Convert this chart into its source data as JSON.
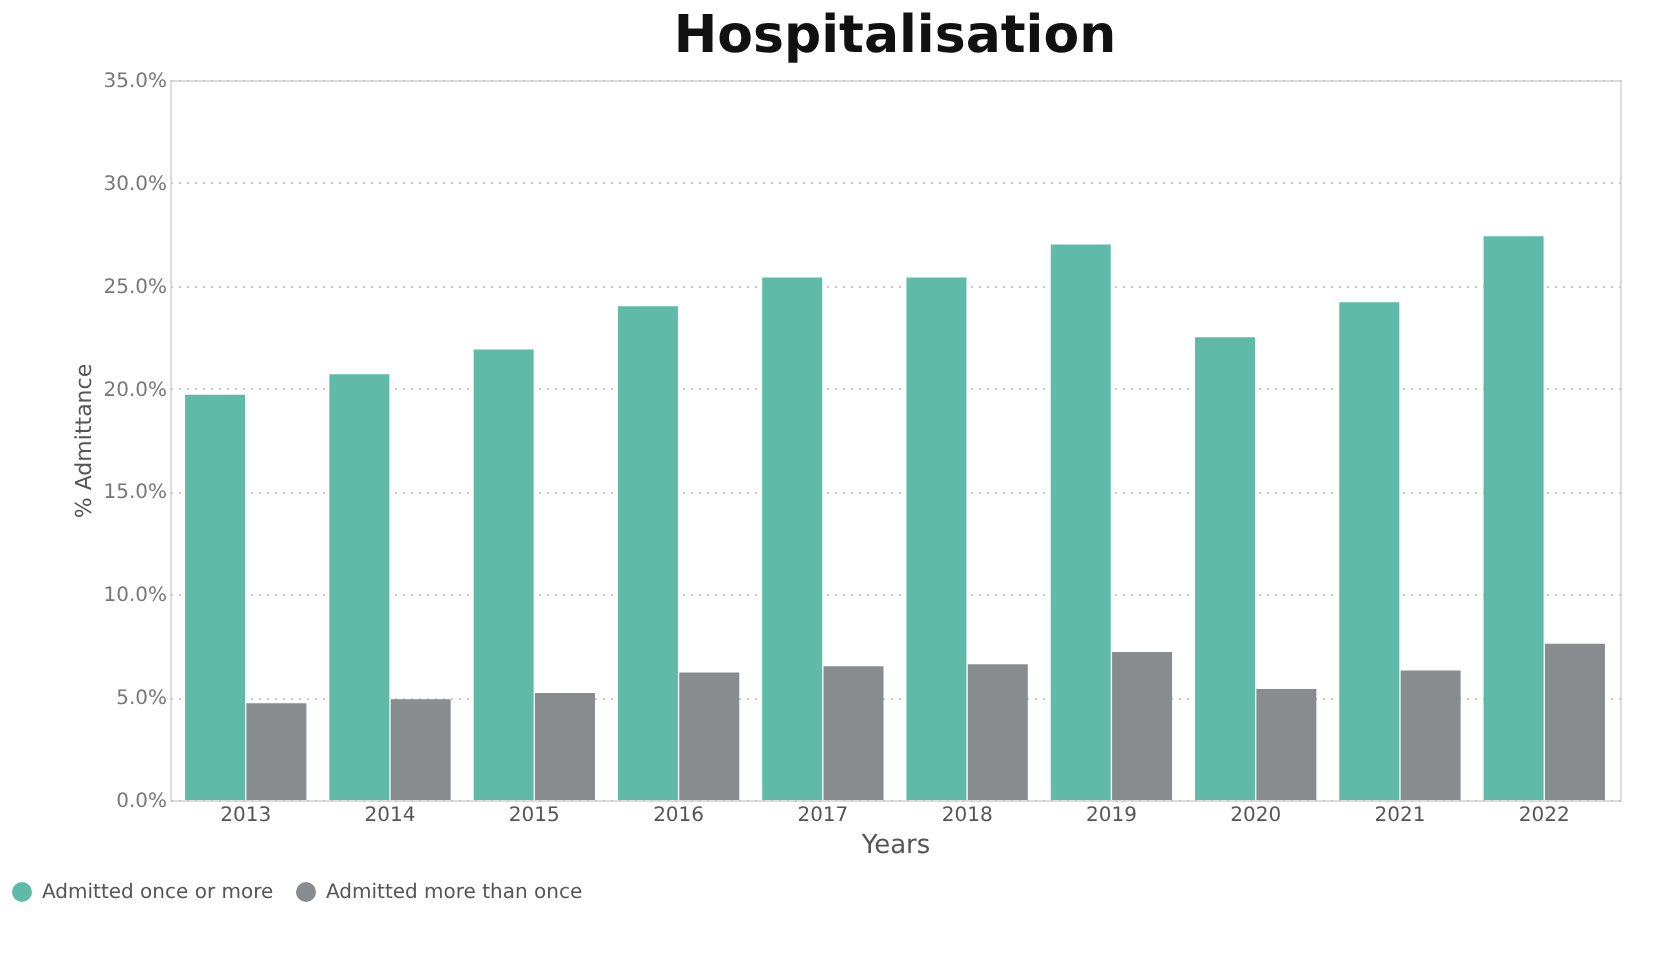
{
  "chart_data": {
    "type": "bar",
    "title": "Hospitalisation",
    "xlabel": "Years",
    "ylabel": "% Admittance",
    "categories": [
      "2013",
      "2014",
      "2015",
      "2016",
      "2017",
      "2018",
      "2019",
      "2020",
      "2021",
      "2022"
    ],
    "series": [
      {
        "name": "Admitted once or more",
        "color": "#5fbaa7",
        "values": [
          19.7,
          20.7,
          21.9,
          24.0,
          25.4,
          25.4,
          27.0,
          22.5,
          24.2,
          27.4
        ]
      },
      {
        "name": "Admitted more than once",
        "color": "#898c8e",
        "values": [
          4.7,
          4.9,
          5.2,
          6.2,
          6.5,
          6.6,
          7.2,
          5.4,
          6.3,
          7.6
        ]
      }
    ],
    "ylim": [
      0,
      35
    ],
    "yticks": [
      {
        "value": 0,
        "label": "0.0%"
      },
      {
        "value": 5,
        "label": "5.0%"
      },
      {
        "value": 10,
        "label": "10.0%"
      },
      {
        "value": 15,
        "label": "15.0%"
      },
      {
        "value": 20,
        "label": "20.0%"
      },
      {
        "value": 25,
        "label": "25.0%"
      },
      {
        "value": 30,
        "label": "30.0%"
      },
      {
        "value": 35,
        "label": "35.0%"
      }
    ],
    "grid": "y",
    "legend": "bottom left"
  }
}
